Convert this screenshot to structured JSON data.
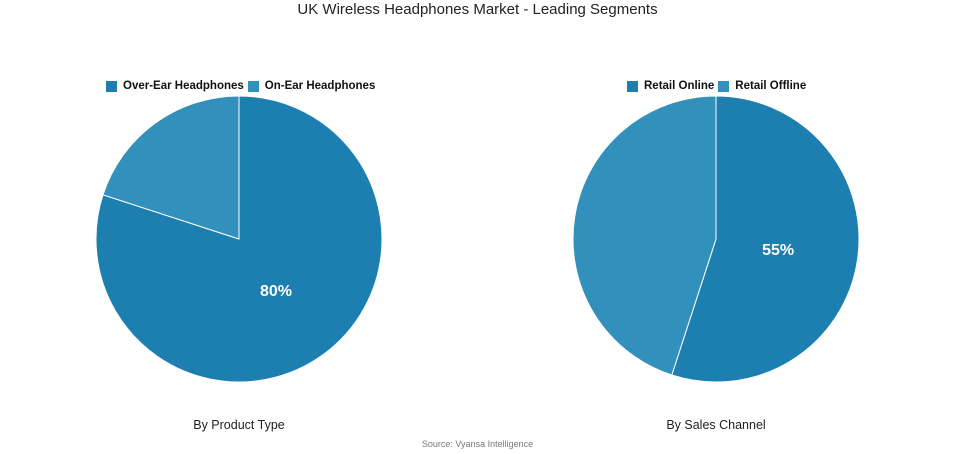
{
  "title": "UK Wireless Headphones Market - Leading Segments",
  "source": "Source: Vyansa Intelligence",
  "chart_data": [
    {
      "type": "pie",
      "caption": "By Product Type",
      "legend_position": "top",
      "slices": [
        {
          "name": "Over-Ear Headphones",
          "value": 80,
          "label": "80%",
          "color": "#1c7fb0"
        },
        {
          "name": "On-Ear Headphones",
          "value": 20,
          "label": "",
          "color": "#3190bc"
        }
      ]
    },
    {
      "type": "pie",
      "caption": "By Sales Channel",
      "legend_position": "top",
      "slices": [
        {
          "name": "Retail Online",
          "value": 55,
          "label": "55%",
          "color": "#1c7fb0"
        },
        {
          "name": "Retail Offline",
          "value": 45,
          "label": "",
          "color": "#3190bc"
        }
      ]
    }
  ]
}
